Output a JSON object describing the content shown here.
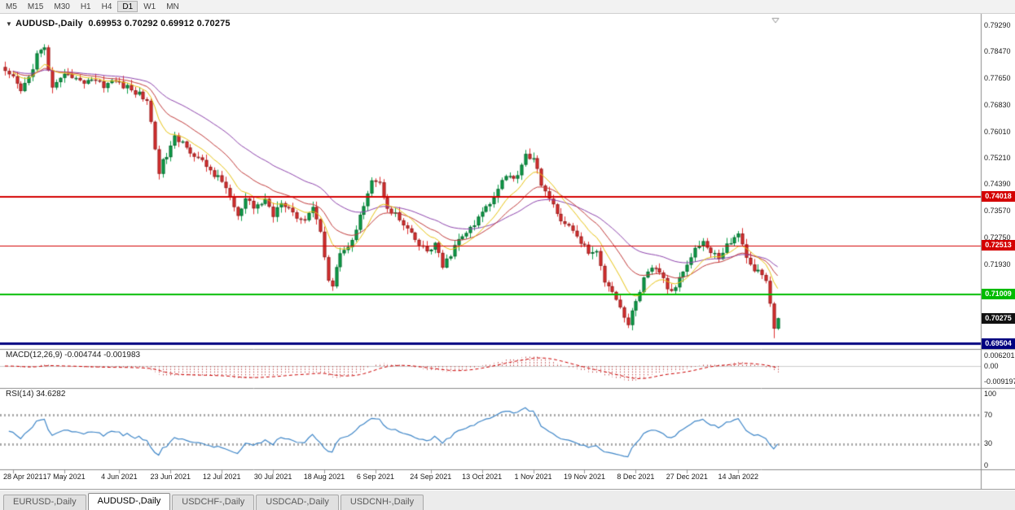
{
  "toolbar": {
    "timeframes": [
      "M5",
      "M15",
      "M30",
      "H1",
      "H4",
      "D1",
      "W1",
      "MN"
    ],
    "active": "D1"
  },
  "chart": {
    "title_symbol": "AUDUSD-,Daily",
    "title_ohlc": "0.69953 0.70292 0.69912 0.70275",
    "price_axis_ticks": [
      "0.79290",
      "0.78470",
      "0.77650",
      "0.76830",
      "0.76010",
      "0.75210",
      "0.74390",
      "0.73570",
      "0.72750",
      "0.71930"
    ],
    "lines": [
      {
        "price": 0.74018,
        "label": "0.74018",
        "color": "#d40000",
        "width": 2
      },
      {
        "price": 0.72513,
        "label": "0.72513",
        "color": "#d40000",
        "width": 1
      },
      {
        "price": 0.71009,
        "label": "0.71009",
        "color": "#00bb00",
        "width": 2
      },
      {
        "price": 0.69504,
        "label": "0.69504",
        "color": "#000080",
        "width": 3
      }
    ],
    "current_price": {
      "price": 0.70275,
      "label": "0.70275",
      "bg": "#111111"
    },
    "colors": {
      "bull": "#0da14a",
      "bear": "#df3030",
      "ma_fast": "#e8c412",
      "ma_mid": "#c23b3b",
      "ma_slow": "#8e44ad"
    }
  },
  "macd": {
    "label": "MACD(12,26,9) -0.004744 -0.001983",
    "fast": 12,
    "slow": 26,
    "signal": 9,
    "current_values": [
      -0.004744,
      -0.001983
    ],
    "axis": [
      {
        "v": 0.006201,
        "label": "0.006201"
      },
      {
        "v": 0,
        "label": "0.00"
      },
      {
        "v": -0.009197,
        "label": "-0.009197"
      }
    ],
    "hist_color": "#c05050",
    "signal_color": "#cc0000"
  },
  "rsi": {
    "label": "RSI(14) 34.6282",
    "period": 14,
    "current": 34.6282,
    "levels": [
      70,
      30
    ],
    "axis": [
      {
        "v": 100,
        "label": "100"
      },
      {
        "v": 70,
        "label": "70"
      },
      {
        "v": 30,
        "label": "30"
      },
      {
        "v": 0,
        "label": "0"
      }
    ],
    "line_color": "#3e86c8"
  },
  "dates": [
    {
      "label": "28 Apr 2021",
      "i": 2
    },
    {
      "label": "17 May 2021",
      "i": 15
    },
    {
      "label": "4 Jun 2021",
      "i": 29
    },
    {
      "label": "23 Jun 2021",
      "i": 42
    },
    {
      "label": "12 Jul 2021",
      "i": 55
    },
    {
      "label": "30 Jul 2021",
      "i": 68
    },
    {
      "label": "18 Aug 2021",
      "i": 81
    },
    {
      "label": "6 Sep 2021",
      "i": 94
    },
    {
      "label": "24 Sep 2021",
      "i": 108
    },
    {
      "label": "13 Oct 2021",
      "i": 121
    },
    {
      "label": "1 Nov 2021",
      "i": 134
    },
    {
      "label": "19 Nov 2021",
      "i": 147
    },
    {
      "label": "8 Dec 2021",
      "i": 160
    },
    {
      "label": "27 Dec 2021",
      "i": 173
    },
    {
      "label": "14 Jan 2022",
      "i": 186
    }
  ],
  "tabs": [
    {
      "label": "EURUSD-,Daily",
      "active": false
    },
    {
      "label": "AUDUSD-,Daily",
      "active": true
    },
    {
      "label": "USDCHF-,Daily",
      "active": false
    },
    {
      "label": "USDCAD-,Daily",
      "active": false
    },
    {
      "label": "USDCNH-,Daily",
      "active": false
    }
  ],
  "chart_data": {
    "type": "candlestick",
    "symbol": "AUDUSD-",
    "timeframe": "Daily",
    "last_ohlc": {
      "open": 0.69953,
      "high": 0.70292,
      "low": 0.69912,
      "close": 0.70275
    },
    "candle_count": 197,
    "price_axis_range": [
      0.6935,
      0.7955
    ],
    "horizontal_lines": [
      0.74018,
      0.72513,
      0.71009,
      0.69504
    ],
    "moving_averages": [
      {
        "period": 10,
        "color": "#e8c412"
      },
      {
        "period": 20,
        "color": "#c23b3b"
      },
      {
        "period": 40,
        "color": "#8e44ad"
      }
    ],
    "macd": {
      "fast": 12,
      "slow": 26,
      "signal": 9,
      "current": [
        -0.004744,
        -0.001983
      ]
    },
    "rsi": {
      "period": 14,
      "current": 34.6282,
      "levels": [
        70,
        30
      ]
    },
    "anchors": [
      [
        0,
        0.778
      ],
      [
        2,
        0.7762
      ],
      [
        4,
        0.7725
      ],
      [
        6,
        0.7768
      ],
      [
        8,
        0.7838
      ],
      [
        10,
        0.7856
      ],
      [
        12,
        0.7732
      ],
      [
        14,
        0.7756
      ],
      [
        16,
        0.7786
      ],
      [
        19,
        0.7752
      ],
      [
        22,
        0.7766
      ],
      [
        25,
        0.7746
      ],
      [
        28,
        0.7758
      ],
      [
        31,
        0.7736
      ],
      [
        34,
        0.7716
      ],
      [
        36,
        0.77
      ],
      [
        38,
        0.7552
      ],
      [
        39,
        0.7482
      ],
      [
        41,
        0.753
      ],
      [
        43,
        0.758
      ],
      [
        46,
        0.7562
      ],
      [
        48,
        0.7526
      ],
      [
        51,
        0.7496
      ],
      [
        53,
        0.747
      ],
      [
        56,
        0.7432
      ],
      [
        59,
        0.7336
      ],
      [
        61,
        0.739
      ],
      [
        63,
        0.7366
      ],
      [
        66,
        0.7392
      ],
      [
        68,
        0.7346
      ],
      [
        70,
        0.7392
      ],
      [
        73,
        0.7356
      ],
      [
        75,
        0.7322
      ],
      [
        78,
        0.7372
      ],
      [
        80,
        0.7292
      ],
      [
        82,
        0.7152
      ],
      [
        83,
        0.7126
      ],
      [
        85,
        0.7232
      ],
      [
        87,
        0.7246
      ],
      [
        89,
        0.7292
      ],
      [
        91,
        0.7382
      ],
      [
        93,
        0.7456
      ],
      [
        95,
        0.744
      ],
      [
        97,
        0.7372
      ],
      [
        99,
        0.7346
      ],
      [
        101,
        0.7312
      ],
      [
        103,
        0.7282
      ],
      [
        105,
        0.7252
      ],
      [
        107,
        0.7232
      ],
      [
        109,
        0.7256
      ],
      [
        111,
        0.7182
      ],
      [
        113,
        0.7226
      ],
      [
        115,
        0.7266
      ],
      [
        117,
        0.7292
      ],
      [
        119,
        0.7312
      ],
      [
        121,
        0.7356
      ],
      [
        123,
        0.7382
      ],
      [
        125,
        0.7432
      ],
      [
        127,
        0.7472
      ],
      [
        129,
        0.7452
      ],
      [
        131,
        0.7502
      ],
      [
        132,
        0.7536
      ],
      [
        134,
        0.7512
      ],
      [
        136,
        0.7446
      ],
      [
        138,
        0.7392
      ],
      [
        140,
        0.7346
      ],
      [
        142,
        0.7322
      ],
      [
        144,
        0.7292
      ],
      [
        146,
        0.7262
      ],
      [
        148,
        0.7232
      ],
      [
        150,
        0.7226
      ],
      [
        152,
        0.7146
      ],
      [
        154,
        0.7116
      ],
      [
        156,
        0.7062
      ],
      [
        158,
        0.7006
      ],
      [
        160,
        0.7082
      ],
      [
        162,
        0.7146
      ],
      [
        164,
        0.7176
      ],
      [
        166,
        0.7172
      ],
      [
        168,
        0.7122
      ],
      [
        169,
        0.7102
      ],
      [
        171,
        0.7152
      ],
      [
        173,
        0.7202
      ],
      [
        175,
        0.7242
      ],
      [
        177,
        0.7266
      ],
      [
        179,
        0.7226
      ],
      [
        181,
        0.7216
      ],
      [
        183,
        0.7252
      ],
      [
        185,
        0.7272
      ],
      [
        186,
        0.7286
      ],
      [
        187,
        0.7262
      ],
      [
        188,
        0.7216
      ],
      [
        189,
        0.7186
      ],
      [
        191,
        0.7172
      ],
      [
        193,
        0.7136
      ],
      [
        194,
        0.7082
      ],
      [
        195,
        0.69953
      ],
      [
        196,
        0.70275
      ]
    ]
  }
}
